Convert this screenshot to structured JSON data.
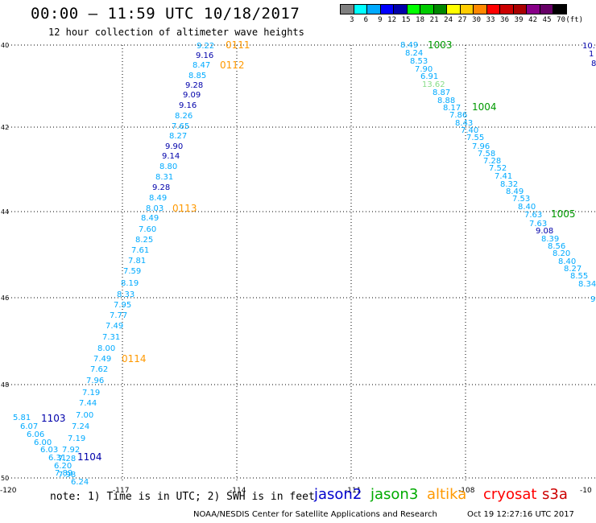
{
  "header": {
    "title": "00:00 – 11:59 UTC 10/18/2017",
    "subtitle": "12 hour collection of altimeter wave heights"
  },
  "legend": {
    "unit": "(ft)",
    "colors": [
      "#808080",
      "#00ffff",
      "#00aaff",
      "#0000ff",
      "#0000aa",
      "#00ff00",
      "#00cc00",
      "#008800",
      "#ffff00",
      "#ffcc00",
      "#ff8800",
      "#ff0000",
      "#cc0000",
      "#aa0000",
      "#880088",
      "#660066",
      "#000000"
    ],
    "labels": [
      "3",
      "6",
      "9",
      "12",
      "15",
      "18",
      "21",
      "24",
      "27",
      "30",
      "33",
      "36",
      "39",
      "42",
      "45",
      "70"
    ]
  },
  "map": {
    "lon_ticks": [
      "-120",
      "-117",
      "-114",
      "-111",
      "-108",
      "-10"
    ],
    "lat_ticks": [
      "40",
      "42",
      "44",
      "46",
      "48",
      "50"
    ],
    "right_edge_labels": [
      "10.",
      "1",
      "8"
    ],
    "track_times": [
      {
        "text": "0111",
        "color": "#ff9900"
      },
      {
        "text": "0112",
        "color": "#ff9900"
      },
      {
        "text": "0113",
        "color": "#ff9900"
      },
      {
        "text": "0114",
        "color": "#ff9900"
      },
      {
        "text": "1003",
        "color": "#009900"
      },
      {
        "text": "1004",
        "color": "#009900"
      },
      {
        "text": "1005",
        "color": "#009900"
      },
      {
        "text": "1103",
        "color": "#0000aa"
      },
      {
        "text": "1104",
        "color": "#0000aa"
      }
    ],
    "track_left": [
      {
        "v": "9.22",
        "c": "#00aaff"
      },
      {
        "v": "9.16",
        "c": "#0000aa"
      },
      {
        "v": "8.47",
        "c": "#00aaff"
      },
      {
        "v": "8.85",
        "c": "#00aaff"
      },
      {
        "v": "9.28",
        "c": "#0000aa"
      },
      {
        "v": "9.09",
        "c": "#0000aa"
      },
      {
        "v": "9.16",
        "c": "#0000aa"
      },
      {
        "v": "8.26",
        "c": "#00aaff"
      },
      {
        "v": "7.65",
        "c": "#00aaff"
      },
      {
        "v": "8.27",
        "c": "#00aaff"
      },
      {
        "v": "9.90",
        "c": "#0000aa"
      },
      {
        "v": "9.14",
        "c": "#0000aa"
      },
      {
        "v": "8.80",
        "c": "#00aaff"
      },
      {
        "v": "8.31",
        "c": "#00aaff"
      },
      {
        "v": "9.28",
        "c": "#0000aa"
      },
      {
        "v": "8.49",
        "c": "#00aaff"
      },
      {
        "v": "8.03",
        "c": "#00aaff"
      },
      {
        "v": "8.49",
        "c": "#00aaff"
      },
      {
        "v": "7.60",
        "c": "#00aaff"
      },
      {
        "v": "8.25",
        "c": "#00aaff"
      },
      {
        "v": "7.61",
        "c": "#00aaff"
      },
      {
        "v": "7.81",
        "c": "#00aaff"
      },
      {
        "v": "7.59",
        "c": "#00aaff"
      },
      {
        "v": "8.19",
        "c": "#00aaff"
      },
      {
        "v": "8.33",
        "c": "#00aaff"
      },
      {
        "v": "7.95",
        "c": "#00aaff"
      },
      {
        "v": "7.77",
        "c": "#00aaff"
      },
      {
        "v": "7.49",
        "c": "#00aaff"
      },
      {
        "v": "7.31",
        "c": "#00aaff"
      },
      {
        "v": "8.00",
        "c": "#00aaff"
      },
      {
        "v": "7.49",
        "c": "#00aaff"
      },
      {
        "v": "7.62",
        "c": "#00aaff"
      },
      {
        "v": "7.96",
        "c": "#00aaff"
      },
      {
        "v": "7.19",
        "c": "#00aaff"
      },
      {
        "v": "7.44",
        "c": "#00aaff"
      },
      {
        "v": "7.00",
        "c": "#00aaff"
      },
      {
        "v": "7.24",
        "c": "#00aaff"
      },
      {
        "v": "7.19",
        "c": "#00aaff"
      },
      {
        "v": "7.92",
        "c": "#00aaff"
      },
      {
        "v": "7.28",
        "c": "#00aaff"
      },
      {
        "v": "7.89",
        "c": "#00aaff"
      },
      {
        "v": "6.24",
        "c": "#00aaff"
      }
    ],
    "track_cluster": [
      {
        "v": "5.81",
        "c": "#00aaff"
      },
      {
        "v": "6.07",
        "c": "#00aaff"
      },
      {
        "v": "6.06",
        "c": "#00aaff"
      },
      {
        "v": "6.00",
        "c": "#00aaff"
      },
      {
        "v": "6.03",
        "c": "#00aaff"
      },
      {
        "v": "6.31",
        "c": "#00aaff"
      },
      {
        "v": "6.20",
        "c": "#00aaff"
      },
      {
        "v": "7.98",
        "c": "#00aaff"
      }
    ],
    "track_right": [
      {
        "v": "8.49",
        "c": "#00aaff"
      },
      {
        "v": "8.24",
        "c": "#00aaff"
      },
      {
        "v": "8.53",
        "c": "#00aaff"
      },
      {
        "v": "7.90",
        "c": "#00aaff"
      },
      {
        "v": "6.91",
        "c": "#00aaff"
      },
      {
        "v": "13.62",
        "c": "#88dd88"
      },
      {
        "v": "8.87",
        "c": "#00aaff"
      },
      {
        "v": "8.88",
        "c": "#00aaff"
      },
      {
        "v": "8.17",
        "c": "#00aaff"
      },
      {
        "v": "7.86",
        "c": "#00aaff"
      },
      {
        "v": "8.43",
        "c": "#00aaff"
      },
      {
        "v": "7.40",
        "c": "#00aaff"
      },
      {
        "v": "7.55",
        "c": "#00aaff"
      },
      {
        "v": "7.96",
        "c": "#00aaff"
      },
      {
        "v": "7.58",
        "c": "#00aaff"
      },
      {
        "v": "7.28",
        "c": "#00aaff"
      },
      {
        "v": "7.52",
        "c": "#00aaff"
      },
      {
        "v": "7.41",
        "c": "#00aaff"
      },
      {
        "v": "8.32",
        "c": "#00aaff"
      },
      {
        "v": "8.49",
        "c": "#00aaff"
      },
      {
        "v": "7.53",
        "c": "#00aaff"
      },
      {
        "v": "8.40",
        "c": "#00aaff"
      },
      {
        "v": "7.63",
        "c": "#00aaff"
      },
      {
        "v": "7.63",
        "c": "#00aaff"
      },
      {
        "v": "9.08",
        "c": "#0000aa"
      },
      {
        "v": "8.39",
        "c": "#00aaff"
      },
      {
        "v": "8.56",
        "c": "#00aaff"
      },
      {
        "v": "8.20",
        "c": "#00aaff"
      },
      {
        "v": "8.40",
        "c": "#00aaff"
      },
      {
        "v": "8.27",
        "c": "#00aaff"
      },
      {
        "v": "8.55",
        "c": "#00aaff"
      },
      {
        "v": "8.34",
        "c": "#00aaff"
      },
      {
        "v": "9",
        "c": "#00aaff"
      }
    ]
  },
  "footer": {
    "note": "note: 1) Time is in UTC; 2) SWH is in feet",
    "satellites": [
      {
        "name": "jason2",
        "color": "#0000cc"
      },
      {
        "name": "jason3",
        "color": "#00aa00"
      },
      {
        "name": "altika",
        "color": "#ff9900"
      },
      {
        "name": "cryosat",
        "color": "#ff0000"
      },
      {
        "name": "s3a",
        "color": "#cc0000"
      }
    ],
    "credit": "NOAA/NESDIS Center for Satellite Applications and Research",
    "generated": "Oct 19 12:27:16 UTC 2017"
  }
}
